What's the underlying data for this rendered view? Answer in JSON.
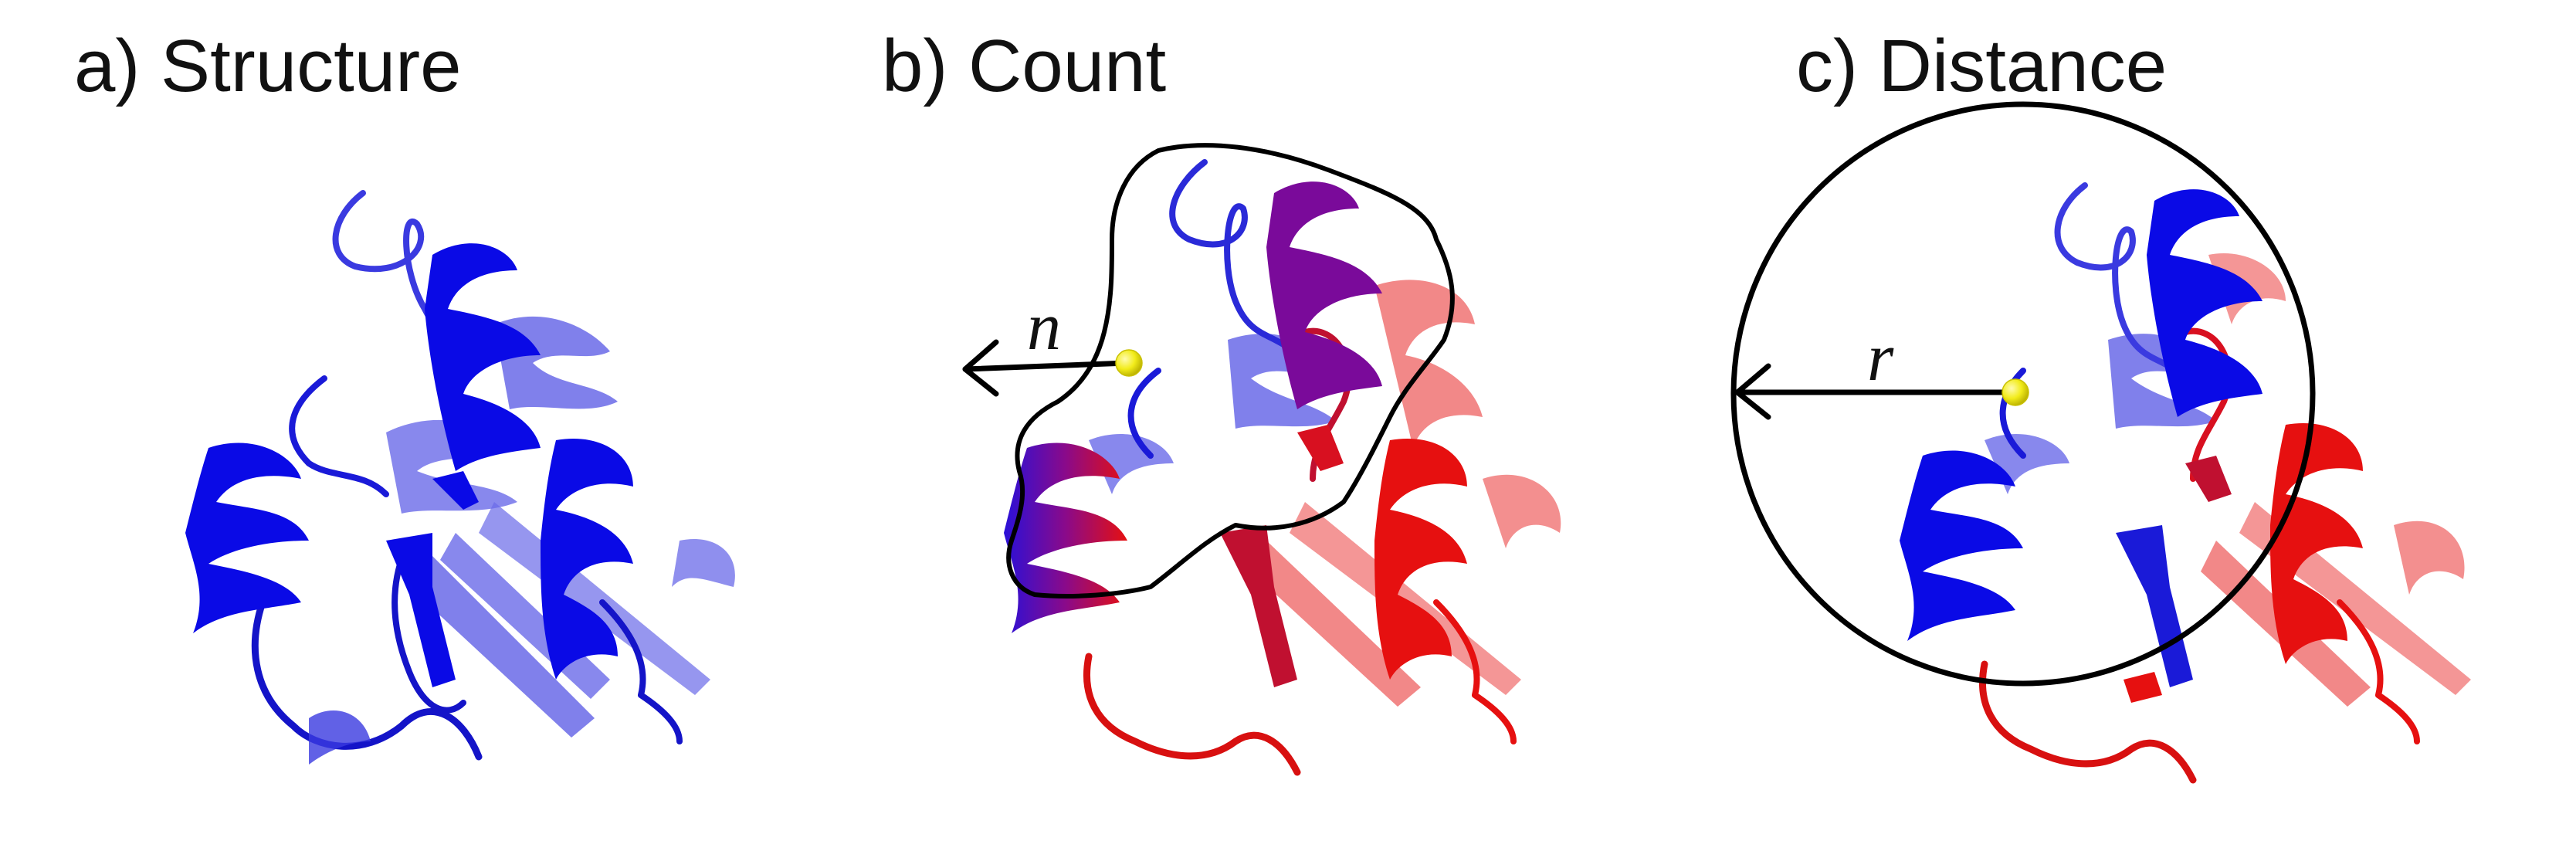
{
  "figure": {
    "panels": [
      {
        "id": "structure",
        "title": "a) Structure"
      },
      {
        "id": "count",
        "title": "b) Count",
        "variable_label": "n"
      },
      {
        "id": "distance",
        "title": "c) Distance",
        "variable_label": "r"
      }
    ],
    "colors": {
      "blue": "#0a0ae6",
      "light_blue": "#6a6ae8",
      "red": "#e61010",
      "light_red": "#ef6a6a",
      "purple": "#7a0a9a",
      "marker_yellow": "#f2ec1a",
      "outline": "#000000"
    },
    "icons": {
      "protein": "protein-ribbon-icon",
      "atom": "atom-marker-icon"
    }
  }
}
